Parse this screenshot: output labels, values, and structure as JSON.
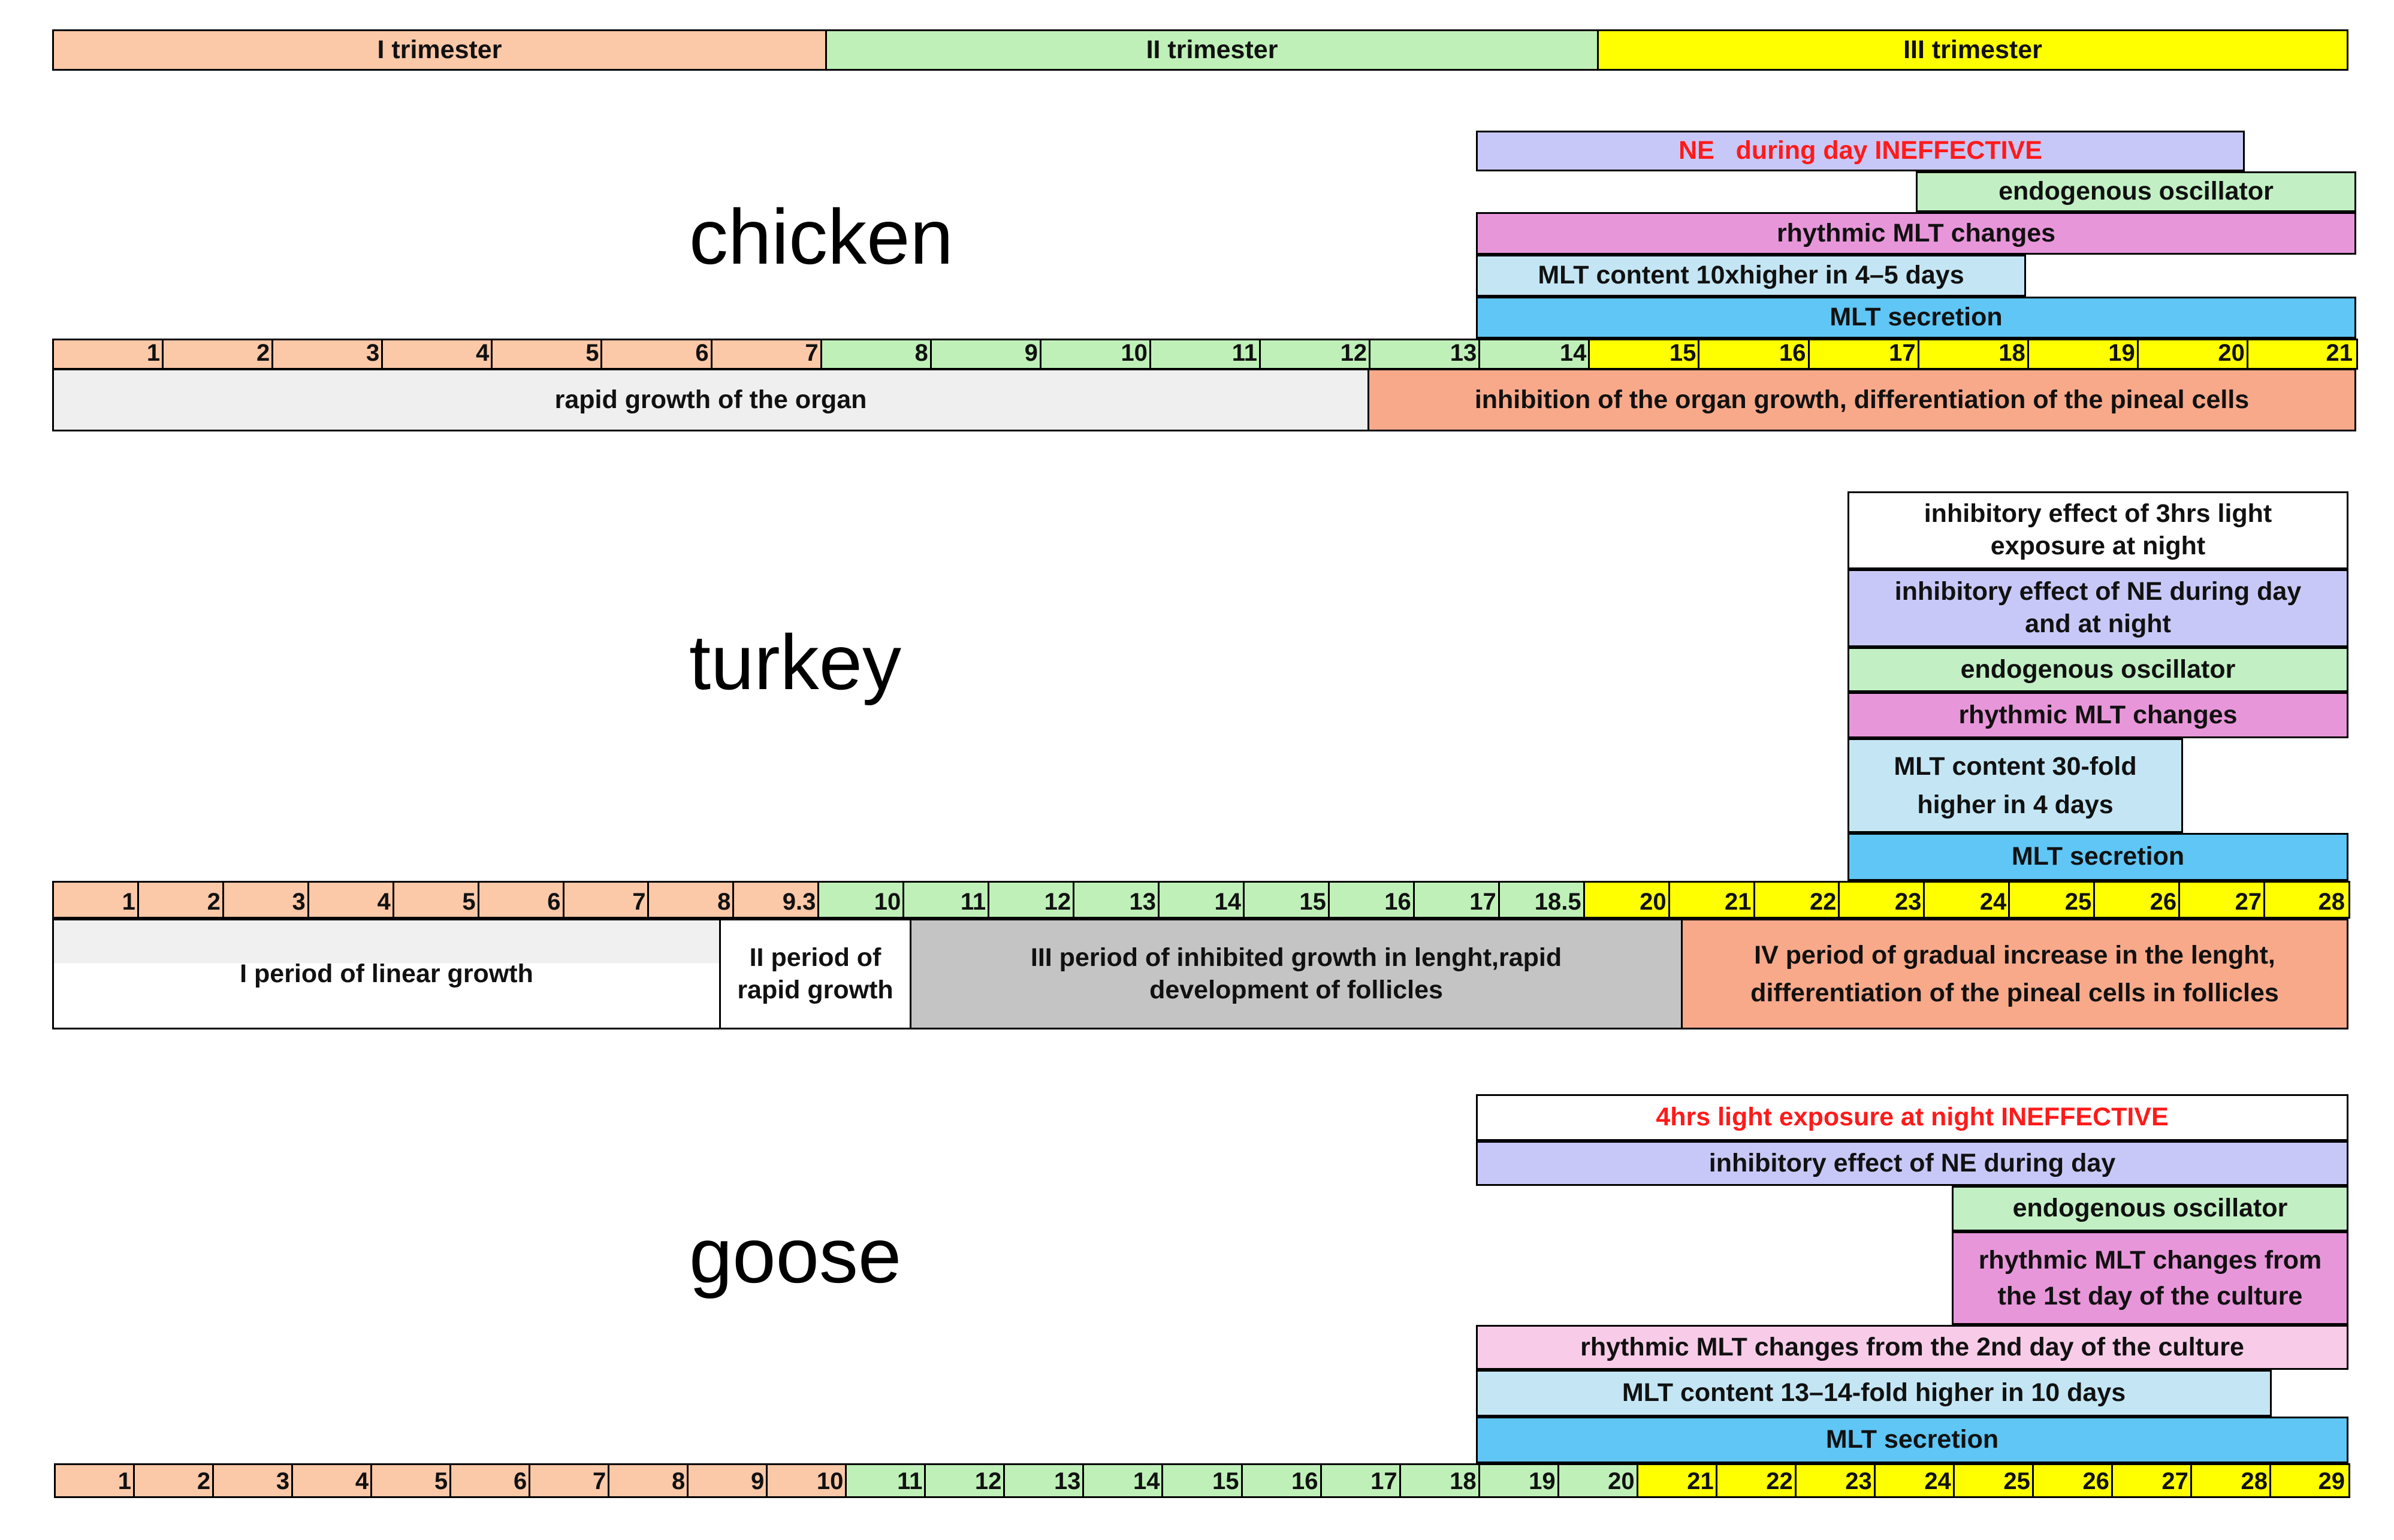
{
  "colors": {
    "trimester1": "#fbc8a8",
    "trimester2": "#bff0b8",
    "trimester3": "#ffff00",
    "lavender": "#c8c8f8",
    "mint": "#c2f0c4",
    "magenta": "#e896da",
    "light_blue": "#c4e6f4",
    "blue": "#5fc6f6",
    "salmon": "#f8a98a",
    "light_gray": "#efefef",
    "gray": "#c4c4c4",
    "pink": "#f8cce8",
    "red_text": "#ff1a1a"
  },
  "trimesters": [
    "I trimester",
    "II trimester",
    "III trimester"
  ],
  "chicken": {
    "title": "chicken",
    "days": [
      "1",
      "2",
      "3",
      "4",
      "5",
      "6",
      "7",
      "8",
      "9",
      "10",
      "11",
      "12",
      "13",
      "14",
      "15",
      "16",
      "17",
      "18",
      "19",
      "20",
      "21"
    ],
    "day_colors": [
      "t1",
      "t1",
      "t1",
      "t1",
      "t1",
      "t1",
      "t1",
      "t2",
      "t2",
      "t2",
      "t2",
      "t2",
      "t2",
      "t2",
      "t3",
      "t3",
      "t3",
      "t3",
      "t3",
      "t3",
      "t3"
    ],
    "bars": {
      "ne": "NE   during day INEFFECTIVE",
      "oscillator": "endogenous oscillator",
      "rhythmic": "rhythmic MLT changes",
      "content": "MLT content 10xhigher in 4–5 days",
      "secretion": "MLT secretion"
    },
    "periods": {
      "growth": "rapid growth of the organ",
      "inhibition": "inhibition of the organ growth, differentiation of the pineal cells"
    }
  },
  "turkey": {
    "title": "turkey",
    "days": [
      "1",
      "2",
      "3",
      "4",
      "5",
      "6",
      "7",
      "8",
      "9.3",
      "10",
      "11",
      "12",
      "13",
      "14",
      "15",
      "16",
      "17",
      "18.5",
      "20",
      "21",
      "22",
      "23",
      "24",
      "25",
      "26",
      "27",
      "28"
    ],
    "day_colors": [
      "t1",
      "t1",
      "t1",
      "t1",
      "t1",
      "t1",
      "t1",
      "t1",
      "t1",
      "t2",
      "t2",
      "t2",
      "t2",
      "t2",
      "t2",
      "t2",
      "t2",
      "t2",
      "t3",
      "t3",
      "t3",
      "t3",
      "t3",
      "t3",
      "t3",
      "t3",
      "t3"
    ],
    "bars": {
      "light": "inhibitory effect of 3hrs light exposure at night",
      "ne": "inhibitory effect of NE during day and at night",
      "oscillator": "endogenous oscillator",
      "rhythmic": "rhythmic MLT changes",
      "content": "MLT content 30-fold higher in 4 days",
      "secretion": "MLT secretion"
    },
    "periods": {
      "p1": "I period of linear growth",
      "p2": "II period of rapid growth",
      "p3": "III period of inhibited growth in lenght,rapid development of follicles",
      "p4": "IV period of gradual increase in the lenght, differentiation of the pineal cells in follicles"
    }
  },
  "goose": {
    "title": "goose",
    "days": [
      "1",
      "2",
      "3",
      "4",
      "5",
      "6",
      "7",
      "8",
      "9",
      "10",
      "11",
      "12",
      "13",
      "14",
      "15",
      "16",
      "17",
      "18",
      "19",
      "20",
      "21",
      "22",
      "23",
      "24",
      "25",
      "26",
      "27",
      "28",
      "29"
    ],
    "day_colors": [
      "t1",
      "t1",
      "t1",
      "t1",
      "t1",
      "t1",
      "t1",
      "t1",
      "t1",
      "t1",
      "t2",
      "t2",
      "t2",
      "t2",
      "t2",
      "t2",
      "t2",
      "t2",
      "t2",
      "t2",
      "t3",
      "t3",
      "t3",
      "t3",
      "t3",
      "t3",
      "t3",
      "t3",
      "t3"
    ],
    "bars": {
      "light": "4hrs light exposure at night INEFFECTIVE",
      "ne": "inhibitory effect of NE during day",
      "oscillator": "endogenous oscillator",
      "rhythmic1": "rhythmic MLT changes from the 1st day of the culture",
      "rhythmic2": "rhythmic MLT changes from the 2nd day of the culture",
      "content": "MLT content 13–14-fold higher in 10 days",
      "secretion": "MLT secretion"
    }
  }
}
